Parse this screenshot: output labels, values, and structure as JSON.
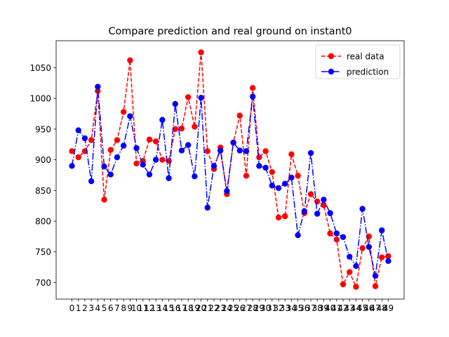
{
  "chart_data": {
    "type": "line",
    "title": "Compare prediction and real ground on instant0",
    "xlabel": "",
    "ylabel": "",
    "x": [
      0,
      1,
      2,
      3,
      4,
      5,
      6,
      7,
      8,
      9,
      10,
      11,
      12,
      13,
      14,
      15,
      16,
      17,
      18,
      19,
      20,
      21,
      22,
      23,
      24,
      25,
      26,
      27,
      28,
      29,
      30,
      31,
      32,
      33,
      34,
      35,
      36,
      37,
      38,
      39,
      40,
      41,
      42,
      43,
      44,
      45,
      46,
      47,
      48,
      49
    ],
    "xticks": [
      "0",
      "1",
      "2",
      "3",
      "4",
      "5",
      "6",
      "7",
      "8",
      "9",
      "10",
      "11",
      "12",
      "13",
      "14",
      "15",
      "16",
      "17",
      "18",
      "19",
      "20",
      "21",
      "22",
      "23",
      "24",
      "25",
      "26",
      "27",
      "28",
      "29",
      "30",
      "31",
      "32",
      "33",
      "34",
      "35",
      "36",
      "37",
      "38",
      "39",
      "40",
      "41",
      "42",
      "43",
      "44",
      "45",
      "46",
      "47",
      "48",
      "49"
    ],
    "yticks": [
      "700",
      "750",
      "800",
      "850",
      "900",
      "950",
      "1000",
      "1050"
    ],
    "xlim": [
      -2.45,
      51.45
    ],
    "ylim": [
      673,
      1094
    ],
    "grid": false,
    "legend_position": "top-right",
    "series": [
      {
        "name": "real data",
        "color": "#ff0000",
        "linestyle": "dashed",
        "values": [
          914,
          904,
          914,
          932,
          1012,
          835,
          916,
          932,
          978,
          1062,
          894,
          898,
          933,
          930,
          900,
          898,
          950,
          951,
          1002,
          954,
          1075,
          914,
          885,
          920,
          844,
          928,
          972,
          874,
          1017,
          904,
          914,
          880,
          806,
          808,
          909,
          874,
          813,
          844,
          832,
          826,
          780,
          770,
          697,
          717,
          693,
          756,
          775,
          694,
          741,
          743
        ]
      },
      {
        "name": "prediction",
        "color": "#0000ff",
        "linestyle": "dashdot",
        "values": [
          890,
          948,
          935,
          865,
          1019,
          889,
          876,
          904,
          923,
          971,
          919,
          892,
          876,
          900,
          965,
          870,
          991,
          915,
          924,
          873,
          1001,
          822,
          890,
          915,
          849,
          928,
          915,
          914,
          1003,
          890,
          887,
          858,
          854,
          861,
          871,
          777,
          816,
          911,
          812,
          835,
          813,
          780,
          774,
          742,
          727,
          820,
          758,
          711,
          785,
          735
        ]
      }
    ]
  }
}
